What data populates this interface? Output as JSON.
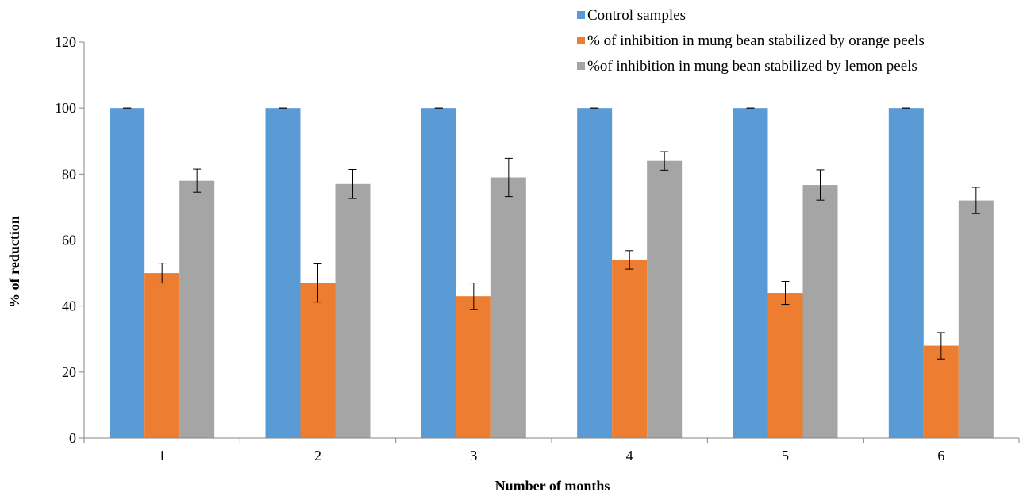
{
  "chart_data": {
    "type": "bar",
    "categories": [
      "1",
      "2",
      "3",
      "4",
      "5",
      "6"
    ],
    "xlabel": "Number of months",
    "ylabel": "% of reduction",
    "ylim": [
      0,
      120
    ],
    "yticks": [
      0,
      20,
      40,
      60,
      80,
      100,
      120
    ],
    "grid": false,
    "legend_position": "top-right",
    "series": [
      {
        "name": "Control samples",
        "color": "#5B9BD5",
        "values": [
          100,
          100,
          100,
          100,
          100,
          100
        ],
        "errors": [
          0,
          0,
          0,
          0,
          0,
          0
        ]
      },
      {
        "name": "% of inhibition in mung bean stabilized by orange peels",
        "color": "#ED7D31",
        "values": [
          50,
          47,
          43,
          54,
          44,
          28
        ],
        "errors": [
          3,
          5.8,
          4,
          2.8,
          3.5,
          4
        ]
      },
      {
        "name": "%of inhibition in mung bean stabilized by lemon peels",
        "color": "#A5A5A5",
        "values": [
          78,
          77,
          79,
          84,
          76.7,
          72
        ],
        "errors": [
          3.5,
          4.4,
          5.8,
          2.8,
          4.6,
          4
        ]
      }
    ]
  }
}
